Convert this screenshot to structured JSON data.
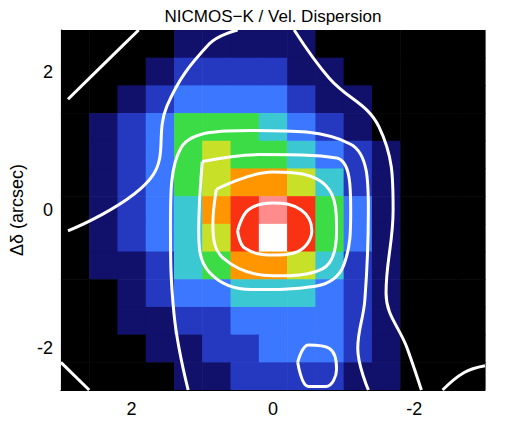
{
  "chart_data": {
    "type": "heatmap",
    "title": "NICMOS−K / Vel. Dispersion",
    "ylabel": "Δδ (arcsec)",
    "xlim": [
      3,
      -3
    ],
    "ylim": [
      -2.6,
      2.6
    ],
    "xticks": [
      2,
      0,
      -2
    ],
    "yticks": [
      -2,
      0,
      2
    ],
    "tick_labels": true,
    "grid": false,
    "x_centers": [
      2.8,
      2.4,
      2.0,
      1.6,
      1.2,
      0.8,
      0.4,
      0.0,
      -0.4,
      -0.8,
      -1.2,
      -1.6,
      -2.0,
      -2.4,
      -2.8
    ],
    "y_centers": [
      2.4,
      2.0,
      1.6,
      1.2,
      0.8,
      0.4,
      0.0,
      -0.4,
      -0.8,
      -1.2,
      -1.6,
      -2.0,
      -2.4
    ],
    "cells": [
      [
        0,
        0,
        0,
        0,
        1,
        1,
        1,
        1,
        1,
        0,
        0,
        0,
        0,
        0,
        0
      ],
      [
        0,
        0,
        0,
        1,
        2,
        2,
        2,
        2,
        1,
        1,
        0,
        0,
        0,
        0,
        0
      ],
      [
        0,
        0,
        1,
        2,
        3,
        3,
        3,
        3,
        2,
        1,
        1,
        0,
        0,
        0,
        0
      ],
      [
        0,
        1,
        2,
        3,
        5,
        5,
        5,
        4,
        3,
        2,
        1,
        0,
        0,
        0,
        0
      ],
      [
        0,
        1,
        2,
        3,
        5,
        6,
        5,
        5,
        4,
        3,
        2,
        1,
        0,
        0,
        0
      ],
      [
        0,
        1,
        2,
        3,
        5,
        6,
        7,
        7,
        6,
        4,
        2,
        1,
        0,
        0,
        0
      ],
      [
        0,
        1,
        2,
        3,
        4,
        7,
        8,
        9,
        8,
        5,
        3,
        1,
        0,
        0,
        0
      ],
      [
        0,
        1,
        2,
        3,
        4,
        6,
        8,
        10,
        8,
        5,
        3,
        1,
        0,
        0,
        0
      ],
      [
        0,
        1,
        1,
        2,
        4,
        5,
        7,
        7,
        6,
        4,
        2,
        1,
        0,
        0,
        0
      ],
      [
        0,
        0,
        1,
        2,
        3,
        3,
        4,
        4,
        4,
        3,
        2,
        1,
        0,
        0,
        0
      ],
      [
        0,
        0,
        1,
        1,
        2,
        2,
        3,
        3,
        3,
        3,
        2,
        1,
        0,
        0,
        0
      ],
      [
        0,
        0,
        0,
        1,
        1,
        2,
        2,
        3,
        3,
        3,
        2,
        1,
        0,
        0,
        0
      ],
      [
        0,
        0,
        0,
        0,
        1,
        1,
        2,
        2,
        2,
        2,
        1,
        1,
        0,
        0,
        0
      ]
    ],
    "color_range": [
      0,
      10
    ],
    "contour_color": "#ffffff",
    "line_style": "solid",
    "contours": [
      [
        [
          0.5,
          -0.3
        ],
        [
          0.35,
          0.0
        ],
        [
          0.0,
          0.1
        ],
        [
          -0.4,
          0.0
        ],
        [
          -0.55,
          -0.3
        ],
        [
          -0.35,
          -0.6
        ],
        [
          0.0,
          -0.65
        ],
        [
          0.4,
          -0.55
        ],
        [
          0.5,
          -0.3
        ]
      ],
      [
        [
          0.8,
          0.3
        ],
        [
          0.0,
          0.55
        ],
        [
          -0.75,
          0.35
        ],
        [
          -0.9,
          -0.3
        ],
        [
          -0.7,
          -0.85
        ],
        [
          0.0,
          -0.95
        ],
        [
          0.7,
          -0.7
        ],
        [
          0.85,
          -0.2
        ],
        [
          0.8,
          0.3
        ]
      ],
      [
        [
          1.0,
          0.7
        ],
        [
          0.2,
          0.8
        ],
        [
          -0.9,
          0.75
        ],
        [
          -1.1,
          0.0
        ],
        [
          -1.0,
          -0.8
        ],
        [
          -0.6,
          -1.1
        ],
        [
          0.3,
          -1.15
        ],
        [
          0.9,
          -0.9
        ],
        [
          1.05,
          -0.3
        ],
        [
          1.0,
          0.7
        ]
      ],
      [
        [
          1.2,
          -2.6
        ],
        [
          1.4,
          -1.5
        ],
        [
          1.45,
          -0.2
        ],
        [
          1.3,
          0.9
        ],
        [
          0.3,
          1.15
        ],
        [
          -1.1,
          0.95
        ],
        [
          -1.35,
          0.0
        ],
        [
          -1.3,
          -1.3
        ],
        [
          -1.2,
          -2.0
        ],
        [
          -1.35,
          -2.6
        ]
      ],
      [
        [
          -0.35,
          -2.2
        ],
        [
          -0.5,
          -1.95
        ],
        [
          -0.8,
          -2.0
        ],
        [
          -0.9,
          -2.3
        ],
        [
          -0.75,
          -2.55
        ],
        [
          -0.5,
          -2.55
        ],
        [
          -0.35,
          -2.2
        ]
      ],
      [
        [
          2.9,
          -0.3
        ],
        [
          1.7,
          0.5
        ],
        [
          1.5,
          1.5
        ],
        [
          0.9,
          2.4
        ],
        [
          0.5,
          2.6
        ]
      ],
      [
        [
          -0.3,
          2.6
        ],
        [
          -0.8,
          1.9
        ],
        [
          -1.5,
          1.2
        ],
        [
          -1.7,
          0.0
        ],
        [
          -1.6,
          -1.2
        ],
        [
          -1.9,
          -2.0
        ],
        [
          -2.1,
          -2.6
        ]
      ],
      [
        [
          2.9,
          1.6
        ],
        [
          2.3,
          2.2
        ],
        [
          1.9,
          2.6
        ]
      ],
      [
        [
          3.0,
          -2.2
        ],
        [
          2.6,
          -2.6
        ]
      ],
      [
        [
          -2.4,
          -2.6
        ],
        [
          -2.7,
          -2.35
        ],
        [
          -3.0,
          -2.25
        ]
      ]
    ]
  }
}
